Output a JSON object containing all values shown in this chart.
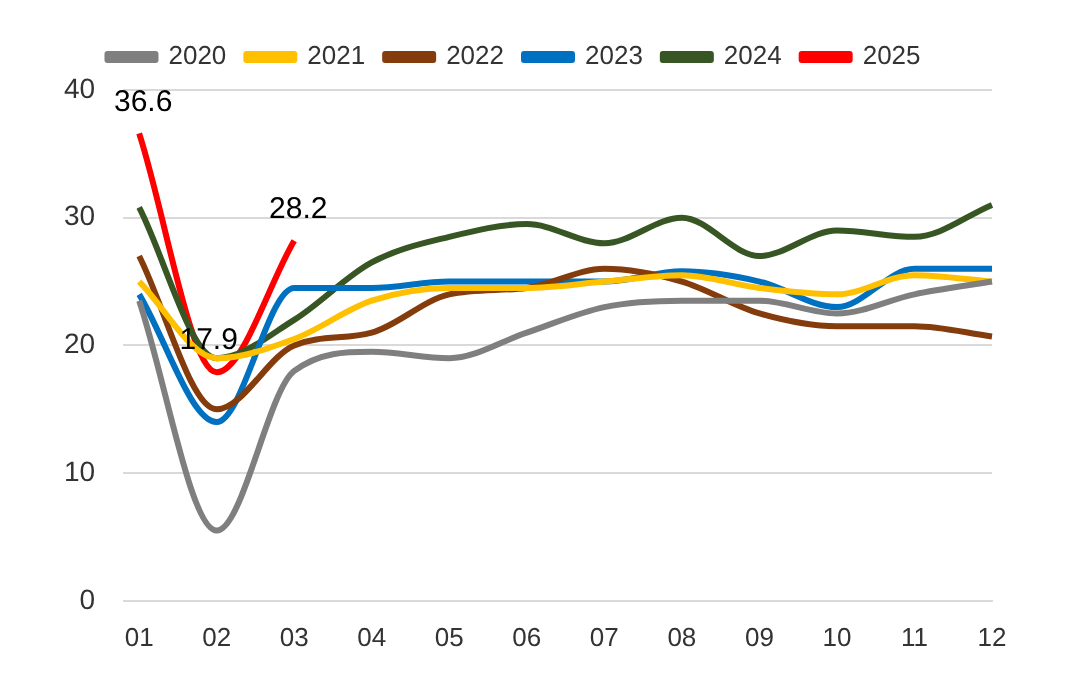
{
  "chart_data": {
    "type": "line",
    "categories": [
      "01",
      "02",
      "03",
      "04",
      "05",
      "06",
      "07",
      "08",
      "09",
      "10",
      "11",
      "12"
    ],
    "series": [
      {
        "name": "2020",
        "color": "#7f7f7f",
        "values": [
          23.5,
          5.5,
          18,
          19.5,
          19,
          21,
          23,
          23.5,
          23.5,
          22.5,
          24,
          25
        ]
      },
      {
        "name": "2021",
        "color": "#ffc000",
        "values": [
          25,
          19,
          20.5,
          23.5,
          24.5,
          24.5,
          25,
          25.5,
          24.5,
          24,
          25.5,
          25
        ]
      },
      {
        "name": "2022",
        "color": "#843c0c",
        "values": [
          27,
          15,
          20,
          21,
          24,
          24.5,
          26,
          25,
          22.5,
          21.5,
          21.5,
          20.7
        ]
      },
      {
        "name": "2023",
        "color": "#0070c0",
        "values": [
          24,
          14,
          24.5,
          24.5,
          25,
          25,
          25,
          25.8,
          25,
          23,
          26,
          26
        ]
      },
      {
        "name": "2024",
        "color": "#375623",
        "values": [
          30.8,
          19,
          22,
          26.5,
          28.5,
          29.5,
          28,
          30,
          27,
          29,
          28.5,
          31
        ]
      },
      {
        "name": "2025",
        "color": "#ff0000",
        "values": [
          36.6,
          17.9,
          28.2,
          null,
          null,
          null,
          null,
          null,
          null,
          null,
          null,
          null
        ],
        "value_labels": [
          "36.6",
          "17.9",
          "28.2",
          null,
          null,
          null,
          null,
          null,
          null,
          null,
          null,
          null
        ]
      }
    ],
    "ylim": [
      0,
      40
    ],
    "yticks": [
      0,
      10,
      20,
      30,
      40
    ],
    "grid": "y",
    "legend": "top"
  }
}
